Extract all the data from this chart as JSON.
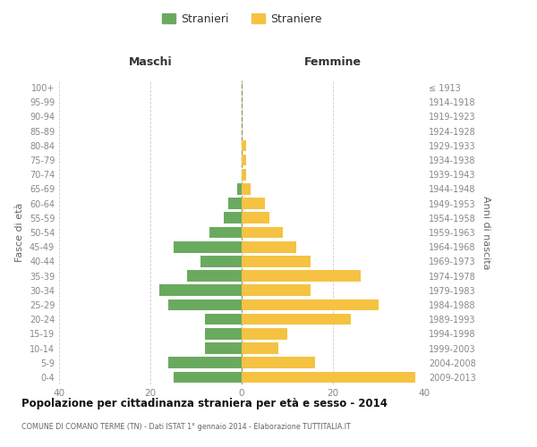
{
  "age_groups": [
    "100+",
    "95-99",
    "90-94",
    "85-89",
    "80-84",
    "75-79",
    "70-74",
    "65-69",
    "60-64",
    "55-59",
    "50-54",
    "45-49",
    "40-44",
    "35-39",
    "30-34",
    "25-29",
    "20-24",
    "15-19",
    "10-14",
    "5-9",
    "0-4"
  ],
  "birth_years": [
    "≤ 1913",
    "1914-1918",
    "1919-1923",
    "1924-1928",
    "1929-1933",
    "1934-1938",
    "1939-1943",
    "1944-1948",
    "1949-1953",
    "1954-1958",
    "1959-1963",
    "1964-1968",
    "1969-1973",
    "1974-1978",
    "1979-1983",
    "1984-1988",
    "1989-1993",
    "1994-1998",
    "1999-2003",
    "2004-2008",
    "2009-2013"
  ],
  "maschi": [
    0,
    0,
    0,
    0,
    0,
    0,
    0,
    1,
    3,
    4,
    7,
    15,
    9,
    12,
    18,
    16,
    8,
    8,
    8,
    16,
    15
  ],
  "femmine": [
    0,
    0,
    0,
    0,
    1,
    1,
    1,
    2,
    5,
    6,
    9,
    12,
    15,
    26,
    15,
    30,
    24,
    10,
    8,
    16,
    38
  ],
  "maschi_color": "#6aaa5e",
  "femmine_color": "#f5c242",
  "background_color": "#ffffff",
  "grid_color": "#cccccc",
  "title": "Popolazione per cittadinanza straniera per età e sesso - 2014",
  "subtitle": "COMUNE DI COMANO TERME (TN) - Dati ISTAT 1° gennaio 2014 - Elaborazione TUTTITALIA.IT",
  "ylabel_left": "Fasce di età",
  "ylabel_right": "Anni di nascita",
  "header_left": "Maschi",
  "header_right": "Femmine",
  "legend_stranieri": "Stranieri",
  "legend_straniere": "Straniere",
  "xlim": 40
}
